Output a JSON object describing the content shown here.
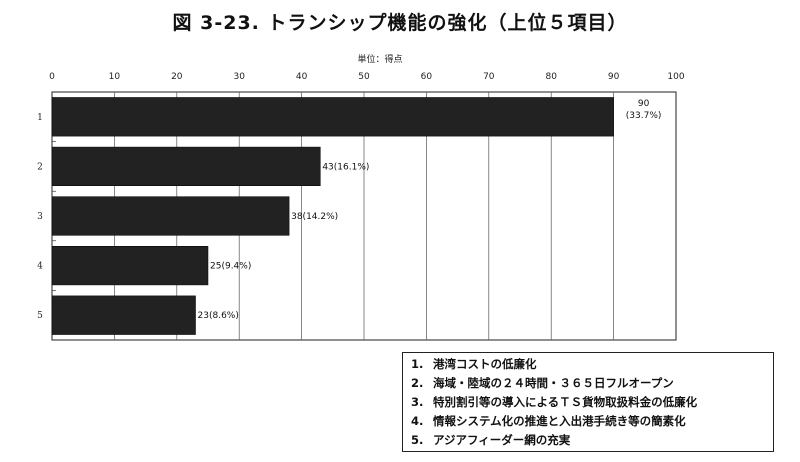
{
  "title": "図 3-23. トランシップ機能の強化（上位５項目）",
  "chart_data": {
    "type": "bar",
    "orientation": "horizontal",
    "unit_label": "単位：得点",
    "categories": [
      "1",
      "2",
      "3",
      "4",
      "5"
    ],
    "values": [
      90,
      43,
      38,
      25,
      23
    ],
    "data_labels": [
      "90\n(33.7%)",
      "43(16.1%)",
      "38(14.2%)",
      "25(9.4%)",
      "23(8.6%)"
    ],
    "xlim": [
      0,
      100
    ],
    "x_ticks": [
      0,
      10,
      20,
      30,
      40,
      50,
      60,
      70,
      80,
      90,
      100
    ],
    "grid": true,
    "bar_color": "#222222",
    "legend_placement": "bottom-right"
  },
  "legend": [
    {
      "num": "1.",
      "text": "港湾コストの低廉化"
    },
    {
      "num": "2.",
      "text": "海域・陸域の２４時間・３６５日フルオープン"
    },
    {
      "num": "3.",
      "text": "特別割引等の導入によるＴＳ貨物取扱料金の低廉化"
    },
    {
      "num": "4.",
      "text": "情報システム化の推進と入出港手続き等の簡素化"
    },
    {
      "num": "5.",
      "text": "アジアフィーダー網の充実"
    }
  ]
}
